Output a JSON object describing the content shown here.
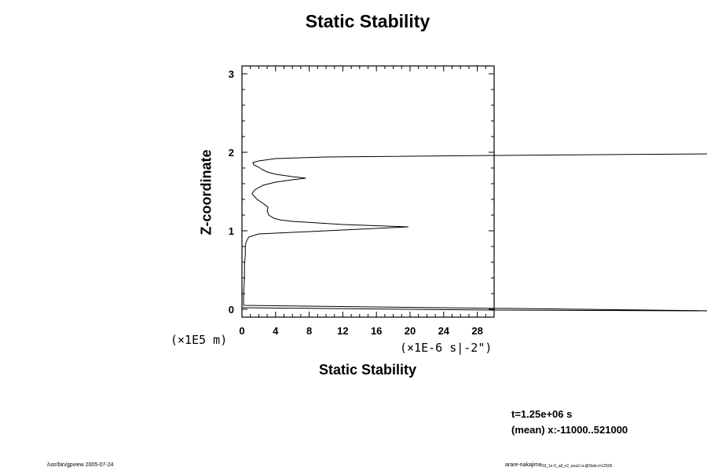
{
  "chart_data": {
    "type": "line",
    "title": "Static Stability",
    "xlabel": "Static Stability",
    "ylabel": "Z-coordinate",
    "x_unit_label": "(×1E-6 s|-2\")",
    "y_unit_label": "(×1E5 m)",
    "xlim": [
      0,
      30
    ],
    "ylim": [
      -0.1,
      3.1
    ],
    "x_ticks": [
      0,
      4,
      8,
      12,
      16,
      20,
      24,
      28
    ],
    "y_ticks": [
      0,
      1,
      2,
      3
    ],
    "grid": false,
    "legend": "none",
    "series": [
      {
        "points": [
          [
            0.0,
            0.02
          ],
          [
            10,
            0.01
          ],
          [
            30,
            -0.01
          ],
          [
            56,
            -0.02
          ],
          [
            0.2,
            0.05
          ],
          [
            0.2,
            0.2
          ],
          [
            0.3,
            0.4
          ],
          [
            0.3,
            0.55
          ],
          [
            0.4,
            0.7
          ],
          [
            0.4,
            0.8
          ],
          [
            0.5,
            0.86
          ],
          [
            0.8,
            0.92
          ],
          [
            2,
            0.96
          ],
          [
            6,
            0.98
          ],
          [
            12,
            1.01
          ],
          [
            19.8,
            1.05
          ],
          [
            12,
            1.08
          ],
          [
            6,
            1.12
          ],
          [
            4.5,
            1.14
          ],
          [
            3.8,
            1.16
          ],
          [
            3.2,
            1.2
          ],
          [
            3.0,
            1.25
          ],
          [
            3.1,
            1.3
          ],
          [
            2.5,
            1.35
          ],
          [
            1.8,
            1.4
          ],
          [
            1.2,
            1.47
          ],
          [
            1.5,
            1.52
          ],
          [
            2.5,
            1.58
          ],
          [
            4,
            1.62
          ],
          [
            6,
            1.65
          ],
          [
            7.6,
            1.67
          ],
          [
            6,
            1.69
          ],
          [
            4,
            1.72
          ],
          [
            3,
            1.75
          ],
          [
            2.4,
            1.78
          ],
          [
            2.0,
            1.81
          ],
          [
            1.4,
            1.84
          ],
          [
            1.3,
            1.87
          ],
          [
            2.0,
            1.89
          ],
          [
            4,
            1.92
          ],
          [
            10,
            1.94
          ],
          [
            30,
            1.96
          ],
          [
            56,
            1.98
          ]
        ]
      }
    ]
  },
  "info": {
    "time": "t=1.25e+06 s",
    "mean": "(mean) x:-11000..521000"
  },
  "footer": {
    "left": "/usr/bin/gpview 2005-07-24",
    "right_main": "arare-nakajima",
    "right_sub": "03_1e-5_all_v2_ana2.nc@Stab,t=12500"
  }
}
